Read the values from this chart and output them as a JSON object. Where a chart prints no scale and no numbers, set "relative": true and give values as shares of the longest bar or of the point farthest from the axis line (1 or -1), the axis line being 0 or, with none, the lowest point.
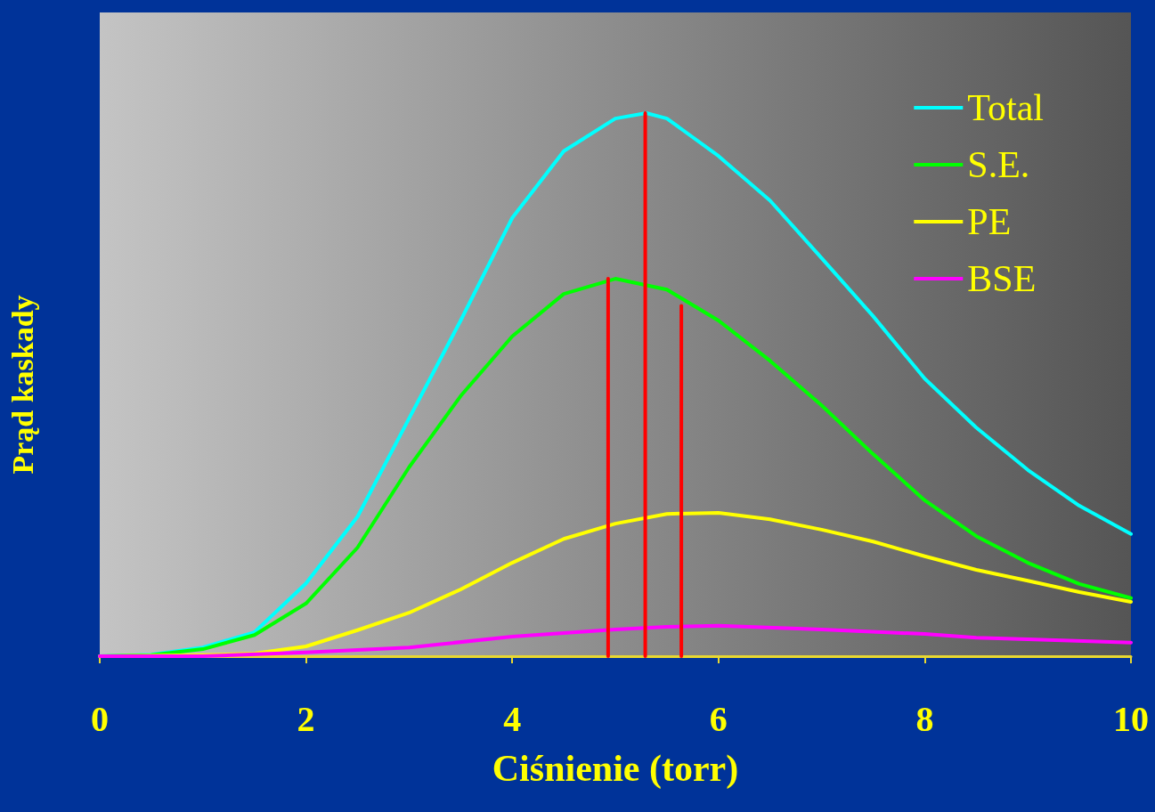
{
  "chart_data": {
    "type": "line",
    "relative": true,
    "xlabel": "Ciśnienie (torr)",
    "ylabel": "Prąd kaskady",
    "x": [
      0,
      0.5,
      1,
      1.5,
      2,
      2.5,
      3,
      3.5,
      4,
      4.5,
      5,
      5.5,
      6,
      6.5,
      7,
      7.5,
      8,
      8.5,
      9,
      9.5,
      10
    ],
    "xlim": [
      0,
      10
    ],
    "xticks": [
      0,
      2,
      4,
      6,
      8,
      10
    ],
    "tick_labels": "x",
    "grid": false,
    "legend": "top right",
    "marker": "none",
    "series": [
      {
        "name": "Total",
        "color": "#00ffff",
        "x": [
          0,
          0.5,
          1,
          1.5,
          2,
          2.5,
          3,
          3.5,
          4,
          4.5,
          5,
          5.3,
          5.5,
          6,
          6.5,
          7,
          7.5,
          8,
          8.5,
          9,
          9.5,
          10
        ],
        "values": [
          0,
          0.003,
          0.016,
          0.044,
          0.134,
          0.257,
          0.438,
          0.618,
          0.807,
          0.93,
          0.99,
          1,
          0.99,
          0.921,
          0.839,
          0.733,
          0.626,
          0.511,
          0.421,
          0.343,
          0.277,
          0.225
        ]
      },
      {
        "name": "S.E.",
        "color": "#00ff00",
        "values": [
          0,
          0.002,
          0.013,
          0.039,
          0.097,
          0.2,
          0.348,
          0.479,
          0.589,
          0.667,
          0.695,
          0.675,
          0.618,
          0.544,
          0.462,
          0.372,
          0.287,
          0.221,
          0.172,
          0.133,
          0.107
        ]
      },
      {
        "name": "PE",
        "color": "#ffff00",
        "values": [
          0,
          null,
          0.002,
          0.005,
          0.018,
          0.048,
          0.08,
          0.123,
          0.172,
          0.216,
          0.244,
          0.262,
          0.264,
          0.252,
          0.233,
          0.211,
          0.184,
          0.159,
          0.139,
          0.118,
          0.1
        ]
      },
      {
        "name": "BSE",
        "color": "#ff00ff",
        "x": [
          0,
          1,
          2,
          3,
          4,
          5,
          5.5,
          6,
          7,
          8,
          8.5,
          9,
          10
        ],
        "values": [
          0,
          0,
          0.007,
          0.016,
          0.036,
          0.049,
          0.054,
          0.056,
          0.049,
          0.041,
          0.034,
          0.031,
          0.025
        ]
      },
      {
        "color": "#ff0000",
        "x": [
          4.93,
          4.93
        ],
        "values": [
          0,
          0.695
        ]
      },
      {
        "color": "#ff0000",
        "x": [
          5.29,
          5.29
        ],
        "values": [
          0,
          1
        ]
      },
      {
        "color": "#ff0000",
        "x": [
          5.64,
          5.64
        ],
        "values": [
          0,
          0.645
        ]
      }
    ]
  }
}
